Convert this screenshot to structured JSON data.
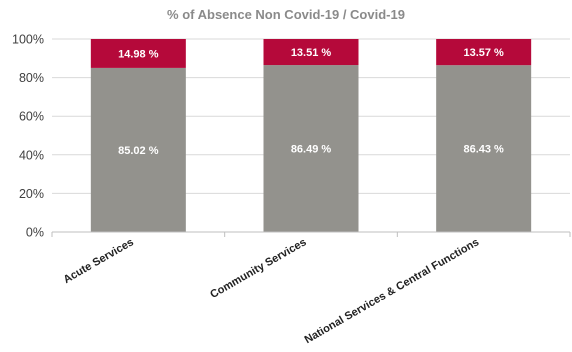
{
  "chart_data": {
    "type": "bar",
    "stacked": true,
    "title": "% of Absence Non Covid-19 / Covid-19",
    "xlabel": "",
    "ylabel": "",
    "ylim": [
      0,
      100
    ],
    "y_ticks": [
      "0%",
      "20%",
      "40%",
      "60%",
      "80%",
      "100%"
    ],
    "y_tick_values": [
      0,
      20,
      40,
      60,
      80,
      100
    ],
    "grid": true,
    "legend": "none",
    "categories": [
      "Acute Services",
      "Community Services",
      "National Services & Central Functions"
    ],
    "series": [
      {
        "values": [
          85.02,
          86.49,
          86.43
        ],
        "labels": [
          "85.02 %",
          "86.49 %",
          "86.43 %"
        ],
        "color": "#93928d"
      },
      {
        "values": [
          14.98,
          13.51,
          13.57
        ],
        "labels": [
          "14.98 %",
          "13.51 %",
          "13.57 %"
        ],
        "color": "#b5093a"
      }
    ]
  }
}
